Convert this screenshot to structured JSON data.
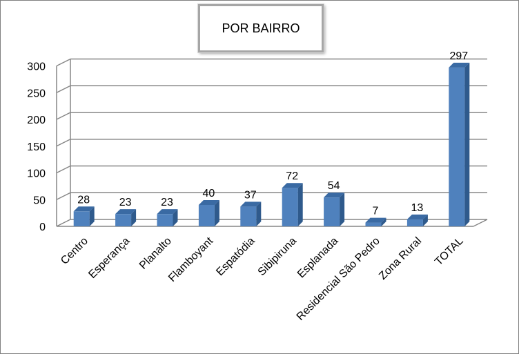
{
  "chart_data": {
    "type": "bar",
    "title": "POR BAIRRO",
    "categories": [
      "Centro",
      "Esperança",
      "Planalto",
      "Flamboyant",
      "Espatódia",
      "Sibipiruna",
      "Esplanada",
      "Residencial São Pedro",
      "Zona Rural",
      "TOTAL"
    ],
    "values": [
      28,
      23,
      23,
      40,
      37,
      72,
      54,
      7,
      13,
      297
    ],
    "data_labels": [
      "28",
      "23",
      "23",
      "40",
      "37",
      "72",
      "54",
      "7",
      "13",
      "297"
    ],
    "yticks": [
      "0",
      "50",
      "100",
      "150",
      "200",
      "250",
      "300"
    ],
    "ylim": [
      0,
      300
    ],
    "grid": true,
    "legend": "none",
    "bar_color": "#4f81bd",
    "bar_side_color": "#2f5a8c",
    "bar_top_color": "#3a6aa3"
  }
}
